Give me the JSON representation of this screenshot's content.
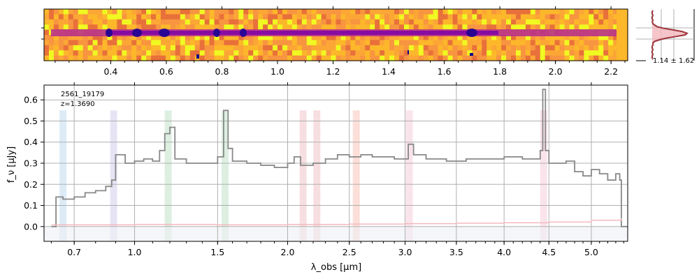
{
  "chart_data": {
    "type": "line",
    "spectrum_2d": {
      "x_ticks": [
        "0.4",
        "0.6",
        "0.8",
        "1.0",
        "1.2",
        "1.4",
        "1.6",
        "1.8",
        "2.0",
        "2.2"
      ],
      "x_tick_values": [
        0.4,
        0.6,
        0.8,
        1.0,
        1.2,
        1.4,
        1.6,
        1.8,
        2.0,
        2.2
      ],
      "x_range": [
        0.16,
        2.26
      ],
      "colormap": "plasma"
    },
    "profile_panel": {
      "label": "1.14 ± 1.62",
      "peak_center": 1.14,
      "peak_width": 1.62
    },
    "spectrum_1d": {
      "object_id": "2561_19179",
      "redshift_label": "z=1.3690",
      "ylabel": "f_ν [μJy]",
      "xlabel": "λ_obs [μm]",
      "ylim": [
        -0.07,
        0.67
      ],
      "y_ticks": [
        "0.0",
        "0.1",
        "0.2",
        "0.3",
        "0.4",
        "0.5",
        "0.6"
      ],
      "y_tick_values": [
        0.0,
        0.1,
        0.2,
        0.3,
        0.4,
        0.5,
        0.6
      ],
      "x_ticks": [
        "0.7",
        "1.0",
        "1.5",
        "2.0",
        "2.5",
        "3.0",
        "3.5",
        "4.0",
        "4.5",
        "5.0"
      ],
      "x_tick_values": [
        0.7,
        1.0,
        1.5,
        2.0,
        2.5,
        3.0,
        3.5,
        4.0,
        4.5,
        5.0
      ],
      "grid": true,
      "series": [
        {
          "color": "#888888",
          "x": [
            0.6,
            0.62,
            0.65,
            0.7,
            0.75,
            0.8,
            0.85,
            0.88,
            0.9,
            0.95,
            1.0,
            1.05,
            1.1,
            1.14,
            1.17,
            1.2,
            1.23,
            1.3,
            1.4,
            1.5,
            1.54,
            1.57,
            1.6,
            1.7,
            1.8,
            1.9,
            2.0,
            2.05,
            2.1,
            2.2,
            2.3,
            2.4,
            2.5,
            2.6,
            2.7,
            2.8,
            2.9,
            3.0,
            3.03,
            3.08,
            3.2,
            3.4,
            3.6,
            3.8,
            4.0,
            4.2,
            4.35,
            4.4,
            4.43,
            4.46,
            4.5,
            4.6,
            4.7,
            4.8,
            4.9,
            5.0,
            5.1,
            5.2,
            5.3,
            5.35,
            5.37,
            5.45
          ],
          "y": [
            0.0,
            0.14,
            0.13,
            0.14,
            0.16,
            0.17,
            0.19,
            0.22,
            0.34,
            0.3,
            0.31,
            0.32,
            0.31,
            0.36,
            0.44,
            0.47,
            0.32,
            0.3,
            0.3,
            0.33,
            0.55,
            0.37,
            0.31,
            0.3,
            0.29,
            0.28,
            0.3,
            0.33,
            0.29,
            0.3,
            0.32,
            0.34,
            0.33,
            0.34,
            0.33,
            0.33,
            0.32,
            0.32,
            0.39,
            0.34,
            0.32,
            0.31,
            0.32,
            0.32,
            0.33,
            0.32,
            0.32,
            0.36,
            0.65,
            0.36,
            0.3,
            0.3,
            0.31,
            0.26,
            0.24,
            0.27,
            0.25,
            0.22,
            0.25,
            0.22,
            0.0,
            0.0
          ]
        },
        {
          "color": "#f4b8bf",
          "x": [
            0.6,
            1.0,
            1.5,
            2.0,
            2.5,
            3.0,
            3.5,
            4.0,
            4.5,
            5.0,
            5.37
          ],
          "y": [
            0.008,
            0.01,
            0.008,
            0.01,
            0.012,
            0.014,
            0.016,
            0.018,
            0.022,
            0.03,
            0.04
          ]
        }
      ],
      "line_bands": [
        {
          "x": 0.65,
          "color": "#9ec7e6"
        },
        {
          "x": 0.89,
          "color": "#b7b3e0"
        },
        {
          "x": 1.19,
          "color": "#9ed2a9"
        },
        {
          "x": 1.55,
          "color": "#9ed2a9"
        },
        {
          "x": 2.12,
          "color": "#e8a3a8"
        },
        {
          "x": 2.23,
          "color": "#e8a3a8"
        },
        {
          "x": 2.56,
          "color": "#f5a48f"
        },
        {
          "x": 3.04,
          "color": "#f0b3c6"
        },
        {
          "x": 4.44,
          "color": "#f0b3c6"
        }
      ]
    }
  }
}
